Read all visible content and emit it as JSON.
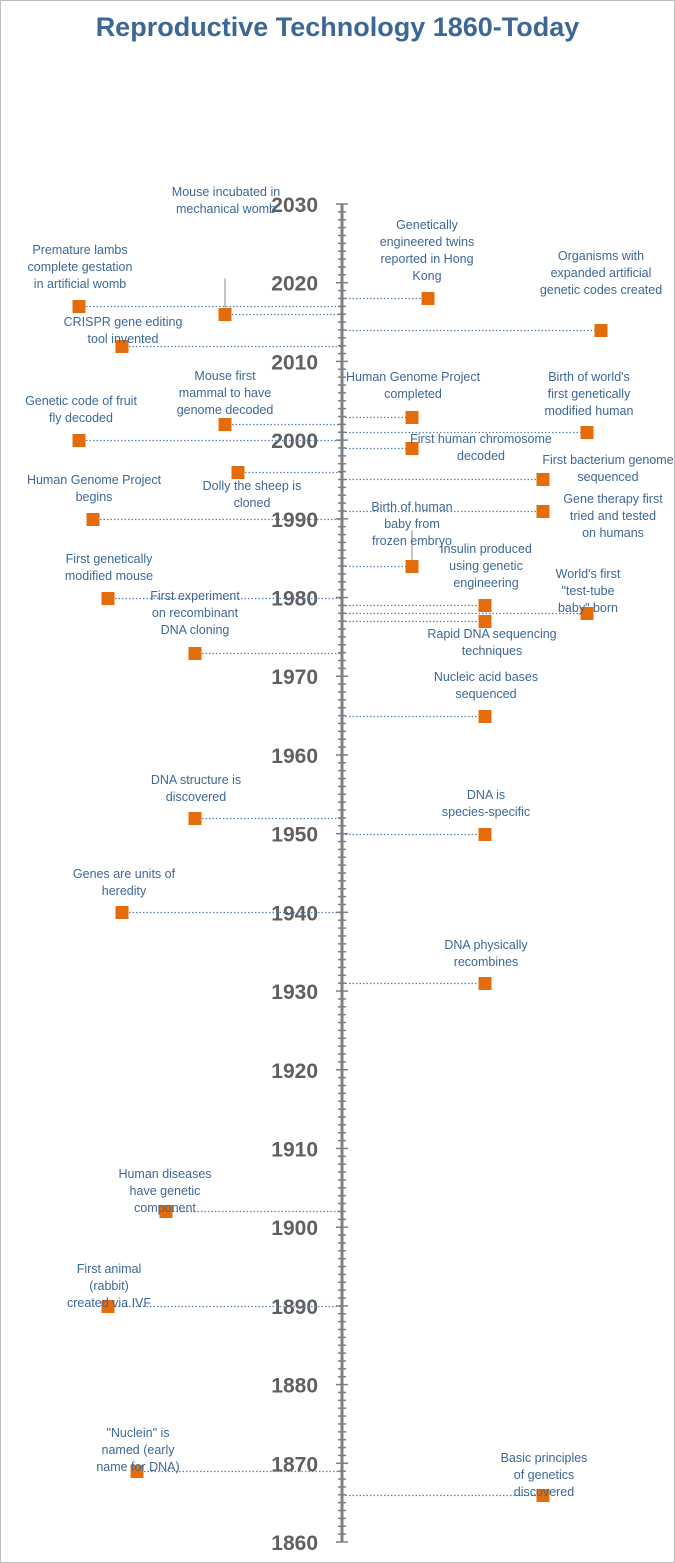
{
  "chart_data": {
    "type": "timeline",
    "title": "Reproductive Technology 1860-Today",
    "ylim": [
      1860,
      2030
    ],
    "yticks": [
      2030,
      2020,
      2010,
      2000,
      1990,
      1980,
      1970,
      1960,
      1950,
      1940,
      1930,
      1920,
      1910,
      1900,
      1890,
      1880,
      1870,
      1860
    ],
    "marker_color": "#e46c0a",
    "axis_color": "#7f7f7f",
    "label_color": "#3d6896",
    "events": [
      {
        "year": 2016,
        "label": "Mouse incubated in mechanical womb",
        "side": "left"
      },
      {
        "year": 2017,
        "label": "Premature lambs complete gestation in artificial womb",
        "side": "left"
      },
      {
        "year": 2018,
        "label": "Genetically engineered twins reported in Hong Kong",
        "side": "right"
      },
      {
        "year": 2014,
        "label": "Organisms with expanded artificial genetic codes created",
        "side": "right"
      },
      {
        "year": 2012,
        "label": "CRISPR gene editing tool invented",
        "side": "left"
      },
      {
        "year": 2002,
        "label": "Mouse first mammal to have genome decoded",
        "side": "left"
      },
      {
        "year": 2003,
        "label": "Human Genome Project completed",
        "side": "right"
      },
      {
        "year": 2001,
        "label": "Birth of world's first genetically modified human",
        "side": "right"
      },
      {
        "year": 2000,
        "label": "Genetic code of fruit fly decoded",
        "side": "left"
      },
      {
        "year": 1999,
        "label": "First human chromosome decoded",
        "side": "right"
      },
      {
        "year": 1996,
        "label": "Dolly the sheep is cloned",
        "side": "left"
      },
      {
        "year": 1995,
        "label": "First bacterium genome sequenced",
        "side": "right"
      },
      {
        "year": 1991,
        "label": "Gene therapy first tried and tested on humans",
        "side": "right"
      },
      {
        "year": 1990,
        "label": "Human Genome Project begins",
        "side": "left"
      },
      {
        "year": 1984,
        "label": "Birth of human baby from frozen embryo",
        "side": "right"
      },
      {
        "year": 1980,
        "label": "First genetically modified mouse",
        "side": "left"
      },
      {
        "year": 1979,
        "label": "Insulin produced using genetic engineering",
        "side": "right"
      },
      {
        "year": 1978,
        "label": "World's first \"test-tube baby\" born",
        "side": "right"
      },
      {
        "year": 1977,
        "label": "Rapid DNA sequencing techniques",
        "side": "right"
      },
      {
        "year": 1973,
        "label": "First experiment on recombinant DNA cloning",
        "side": "left"
      },
      {
        "year": 1965,
        "label": "Nucleic acid bases sequenced",
        "side": "right"
      },
      {
        "year": 1952,
        "label": "DNA structure is discovered",
        "side": "left"
      },
      {
        "year": 1950,
        "label": "DNA is species-specific",
        "side": "right"
      },
      {
        "year": 1940,
        "label": "Genes are units of heredity",
        "side": "left"
      },
      {
        "year": 1931,
        "label": "DNA physically recombines",
        "side": "right"
      },
      {
        "year": 1902,
        "label": "Human diseases have genetic component",
        "side": "left"
      },
      {
        "year": 1890,
        "label": "First animal (rabbit) created via IVF",
        "side": "left"
      },
      {
        "year": 1869,
        "label": "\"Nuclein\" is named (early name for DNA)",
        "side": "left"
      },
      {
        "year": 1866,
        "label": "Basic principles of genetics discovered",
        "side": "right"
      }
    ]
  }
}
